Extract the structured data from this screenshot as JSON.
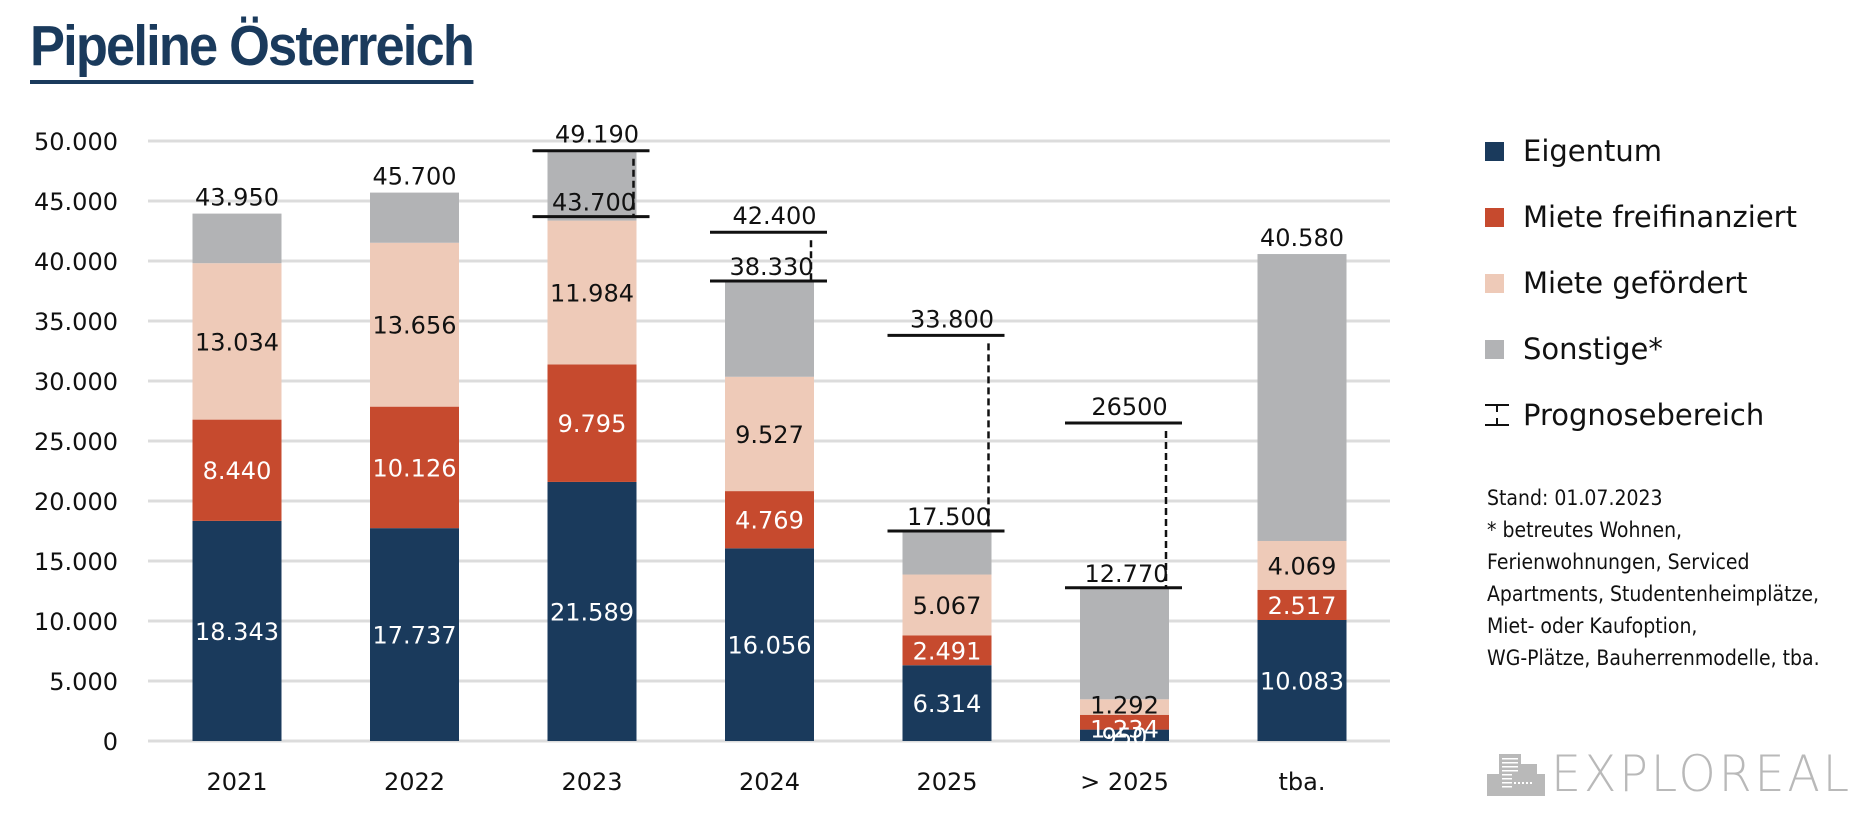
{
  "title": "Pipeline Österreich",
  "chart_data": {
    "type": "bar",
    "stacked": true,
    "title": "Pipeline Österreich",
    "xlabel": "",
    "ylabel": "",
    "ylim": [
      0,
      50000
    ],
    "yticks": [
      0,
      5000,
      10000,
      15000,
      20000,
      25000,
      30000,
      35000,
      40000,
      45000,
      50000
    ],
    "ytick_labels": [
      "0",
      "5.000",
      "10.000",
      "15.000",
      "20.000",
      "25.000",
      "30.000",
      "35.000",
      "40.000",
      "45.000",
      "50.000"
    ],
    "grid": "horizontal",
    "legend_position": "right",
    "categories": [
      "2021",
      "2022",
      "2023",
      "2024",
      "2025",
      "> 2025",
      "tba."
    ],
    "series": [
      {
        "name": "Eigentum",
        "color": "#1a3a5c",
        "label_color": "#ffffff",
        "values": [
          18343,
          17737,
          21589,
          16056,
          6314,
          950,
          10083
        ],
        "labels": [
          "18.343",
          "17.737",
          "21.589",
          "16.056",
          "6.314",
          "950",
          "10.083"
        ]
      },
      {
        "name": "Miete freifinanziert",
        "color": "#c64a2e",
        "label_color": "#ffffff",
        "values": [
          8440,
          10126,
          9795,
          4769,
          2491,
          1234,
          2517
        ],
        "labels": [
          "8.440",
          "10.126",
          "9.795",
          "4.769",
          "2.491",
          "1.234",
          "2.517"
        ]
      },
      {
        "name": "Miete gefördert",
        "color": "#eecab8",
        "label_color": "#111111",
        "values": [
          13034,
          13656,
          11984,
          9527,
          5067,
          1292,
          4069
        ],
        "labels": [
          "13.034",
          "13.656",
          "11.984",
          "9.527",
          "5.067",
          "1.292",
          "4.069"
        ]
      },
      {
        "name": "Sonstige*",
        "color": "#b2b3b5",
        "label_color": "#111111",
        "values": [
          4133,
          4181,
          5822,
          7978,
          3628,
          9294,
          23911
        ],
        "labels": []
      }
    ],
    "totals": [
      43950,
      45700,
      49190,
      38330,
      17500,
      12770,
      40580
    ],
    "total_labels": [
      "43.950",
      "45.700",
      null,
      null,
      null,
      null,
      "40.580"
    ],
    "forecast_ranges": [
      null,
      null,
      {
        "low": 43700,
        "high": 49190,
        "low_label": "43.700",
        "high_label": "49.190"
      },
      {
        "low": 38330,
        "high": 42400,
        "low_label": "38.330",
        "high_label": "42.400"
      },
      {
        "low": 17500,
        "high": 33800,
        "low_label": "17.500",
        "high_label": "33.800"
      },
      {
        "low": 12770,
        "high": 26500,
        "low_label": "12.770",
        "high_label": "26500"
      },
      null
    ]
  },
  "legend": {
    "items": [
      {
        "label": "Eigentum",
        "color": "#1a3a5c",
        "icon": "square"
      },
      {
        "label": "Miete freifinanziert",
        "color": "#c64a2e",
        "icon": "square"
      },
      {
        "label": "Miete gefördert",
        "color": "#eecab8",
        "icon": "square"
      },
      {
        "label": "Sonstige*",
        "color": "#b2b3b5",
        "icon": "square"
      },
      {
        "label": "Prognosebereich",
        "color": "#111111",
        "icon": "range-bracket"
      }
    ]
  },
  "note": {
    "text": "Stand: 01.07.2023\n* betreutes Wohnen,\nFerienwohnungen, Serviced\nApartments, Studentenheimplätze,\nMiet- oder Kaufoption,\nWG-Plätze, Bauherrenmodelle, tba."
  },
  "logo": {
    "text": "EXPLOREAL",
    "icon": "building-icon",
    "color": "#b9b9b9"
  }
}
